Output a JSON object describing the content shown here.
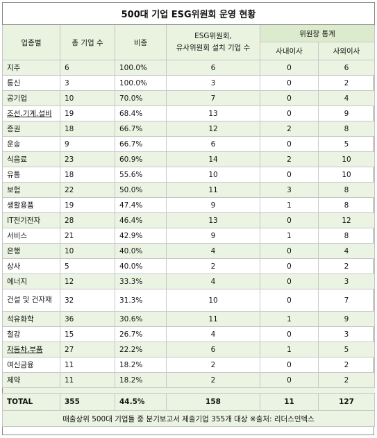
{
  "title": "500대 기업 ESG위원회 운영 현황",
  "headers": {
    "industry": "업종별",
    "total_companies": "총 기업 수",
    "ratio": "비중",
    "esg_committee_line1": "ESG위원회,",
    "esg_committee_line2": "유사위원회 설치 기업 수",
    "chair_stats": "위원장 통계",
    "inside_director": "사내이사",
    "outside_director": "사외이사"
  },
  "rows": [
    {
      "industry": "지주",
      "total": "6",
      "ratio": "100.0%",
      "esg": "6",
      "inside": "0",
      "outside": "6"
    },
    {
      "industry": "통신",
      "total": "3",
      "ratio": "100.0%",
      "esg": "3",
      "inside": "0",
      "outside": "2"
    },
    {
      "industry": "공기업",
      "total": "10",
      "ratio": "70.0%",
      "esg": "7",
      "inside": "0",
      "outside": "4"
    },
    {
      "industry": "조선.기계.설비",
      "total": "19",
      "ratio": "68.4%",
      "esg": "13",
      "inside": "0",
      "outside": "9"
    },
    {
      "industry": "증권",
      "total": "18",
      "ratio": "66.7%",
      "esg": "12",
      "inside": "2",
      "outside": "8"
    },
    {
      "industry": "운송",
      "total": "9",
      "ratio": "66.7%",
      "esg": "6",
      "inside": "0",
      "outside": "5"
    },
    {
      "industry": "식음료",
      "total": "23",
      "ratio": "60.9%",
      "esg": "14",
      "inside": "2",
      "outside": "10"
    },
    {
      "industry": "유통",
      "total": "18",
      "ratio": "55.6%",
      "esg": "10",
      "inside": "0",
      "outside": "10"
    },
    {
      "industry": "보험",
      "total": "22",
      "ratio": "50.0%",
      "esg": "11",
      "inside": "3",
      "outside": "8"
    },
    {
      "industry": "생활용품",
      "total": "19",
      "ratio": "47.4%",
      "esg": "9",
      "inside": "1",
      "outside": "8"
    },
    {
      "industry": "IT전기전자",
      "total": "28",
      "ratio": "46.4%",
      "esg": "13",
      "inside": "0",
      "outside": "12"
    },
    {
      "industry": "서비스",
      "total": "21",
      "ratio": "42.9%",
      "esg": "9",
      "inside": "1",
      "outside": "8"
    },
    {
      "industry": "은행",
      "total": "10",
      "ratio": "40.0%",
      "esg": "4",
      "inside": "0",
      "outside": "4"
    },
    {
      "industry": "상사",
      "total": "5",
      "ratio": "40.0%",
      "esg": "2",
      "inside": "0",
      "outside": "2"
    },
    {
      "industry": "에너지",
      "total": "12",
      "ratio": "33.3%",
      "esg": "4",
      "inside": "0",
      "outside": "3"
    },
    {
      "industry": "건설 및 건자재",
      "total": "32",
      "ratio": "31.3%",
      "esg": "10",
      "inside": "0",
      "outside": "7"
    },
    {
      "industry": "석유화학",
      "total": "36",
      "ratio": "30.6%",
      "esg": "11",
      "inside": "1",
      "outside": "9"
    },
    {
      "industry": "철강",
      "total": "15",
      "ratio": "26.7%",
      "esg": "4",
      "inside": "0",
      "outside": "3"
    },
    {
      "industry": "자동차.부품",
      "total": "27",
      "ratio": "22.2%",
      "esg": "6",
      "inside": "1",
      "outside": "5"
    },
    {
      "industry": "여신금융",
      "total": "11",
      "ratio": "18.2%",
      "esg": "2",
      "inside": "0",
      "outside": "2"
    },
    {
      "industry": "제약",
      "total": "11",
      "ratio": "18.2%",
      "esg": "2",
      "inside": "0",
      "outside": "2"
    }
  ],
  "total_row": {
    "industry": "TOTAL",
    "total": "355",
    "ratio": "44.5%",
    "esg": "158",
    "inside": "11",
    "outside": "127"
  },
  "footnote": "매출상위 500대 기업들 중 분기보고서 제출기업 355개 대상 ※출처: 리더스인덱스"
}
